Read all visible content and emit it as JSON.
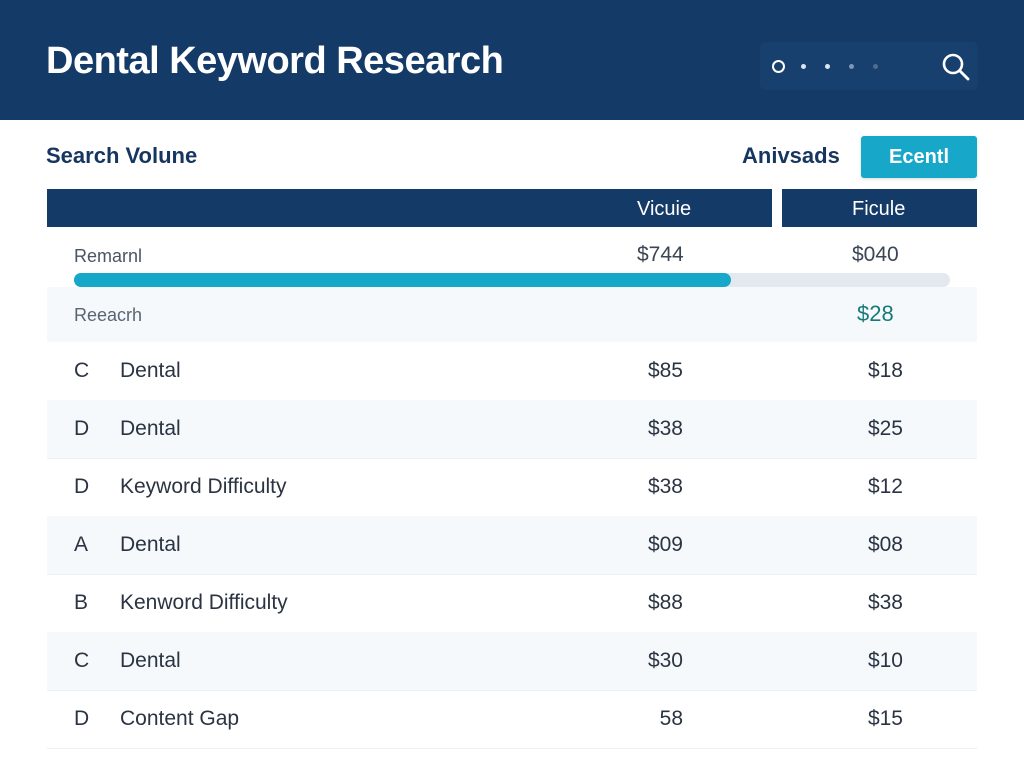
{
  "header": {
    "title": "Dental Keyword Research",
    "search": {
      "icon": "search-icon"
    }
  },
  "toolbar": {
    "section_title": "Search Volune",
    "analysis_label": "Anivsads",
    "export_label": "Ecentl"
  },
  "table": {
    "columns": [
      "Vicuie",
      "Ficule"
    ],
    "summary": {
      "label": "Remarnl",
      "value1": "$744",
      "value2": "$040",
      "progress": 0.75
    },
    "research": {
      "label": "Reeacrh",
      "value2": "$28"
    },
    "rows": [
      {
        "letter": "C",
        "keyword": "Dental",
        "v1": "$85",
        "v2": "$18"
      },
      {
        "letter": "D",
        "keyword": "Dental",
        "v1": "$38",
        "v2": "$25"
      },
      {
        "letter": "D",
        "keyword": "Keyword Difficulty",
        "v1": "$38",
        "v2": "$12"
      },
      {
        "letter": "A",
        "keyword": "Dental",
        "v1": "$09",
        "v2": "$08"
      },
      {
        "letter": "B",
        "keyword": "Kenword Difficulty",
        "v1": "$88",
        "v2": "$38"
      },
      {
        "letter": "C",
        "keyword": "Dental",
        "v1": "$30",
        "v2": "$10"
      },
      {
        "letter": "D",
        "keyword": "Content Gap",
        "v1": "58",
        "v2": "$15"
      }
    ]
  },
  "colors": {
    "header_bg": "#143a67",
    "accent": "#17a7c9",
    "highlight_value": "#177a7a"
  }
}
